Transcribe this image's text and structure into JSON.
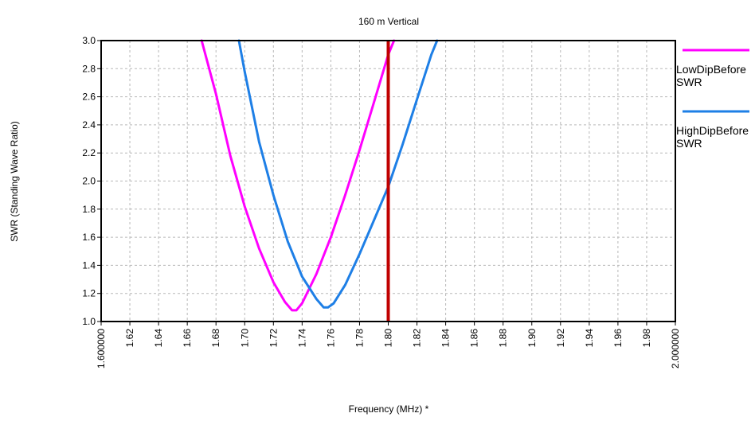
{
  "chart_data": {
    "type": "line",
    "title": "160 m Vertical",
    "xlabel": "Frequency (MHz) *",
    "ylabel": "SWR  (Standing Wave Ratio)",
    "xlim": [
      1.6,
      2.0
    ],
    "ylim": [
      1.0,
      3.0
    ],
    "x_ticks": [
      "1.600000",
      "1.62",
      "1.64",
      "1.66",
      "1.68",
      "1.70",
      "1.72",
      "1.74",
      "1.76",
      "1.78",
      "1.80",
      "1.82",
      "1.84",
      "1.86",
      "1.88",
      "1.90",
      "1.92",
      "1.94",
      "1.96",
      "1.98",
      "2.000000"
    ],
    "y_ticks": [
      "1.0",
      "1.2",
      "1.4",
      "1.6",
      "1.8",
      "2.0",
      "2.2",
      "2.4",
      "2.6",
      "2.8",
      "3.0"
    ],
    "grid": true,
    "legend_position": "right",
    "marker_line": {
      "x": 1.8,
      "color": "#c00000"
    },
    "series": [
      {
        "name": "LowDipBefore\n SWR",
        "color": "#ff00ff",
        "x": [
          1.67,
          1.68,
          1.69,
          1.7,
          1.71,
          1.72,
          1.728,
          1.733,
          1.736,
          1.74,
          1.75,
          1.76,
          1.77,
          1.78,
          1.79,
          1.8,
          1.804
        ],
        "y": [
          3.0,
          2.62,
          2.18,
          1.82,
          1.52,
          1.28,
          1.14,
          1.08,
          1.08,
          1.13,
          1.34,
          1.6,
          1.9,
          2.22,
          2.56,
          2.9,
          3.0
        ]
      },
      {
        "name": "HighDipBefore\n SWR",
        "color": "#1e7fe6",
        "x": [
          1.696,
          1.7,
          1.71,
          1.72,
          1.73,
          1.74,
          1.75,
          1.755,
          1.758,
          1.762,
          1.77,
          1.78,
          1.79,
          1.8,
          1.81,
          1.82,
          1.83,
          1.834
        ],
        "y": [
          3.0,
          2.78,
          2.28,
          1.9,
          1.57,
          1.32,
          1.16,
          1.1,
          1.1,
          1.13,
          1.26,
          1.48,
          1.72,
          1.96,
          2.26,
          2.58,
          2.9,
          3.0
        ]
      }
    ]
  }
}
